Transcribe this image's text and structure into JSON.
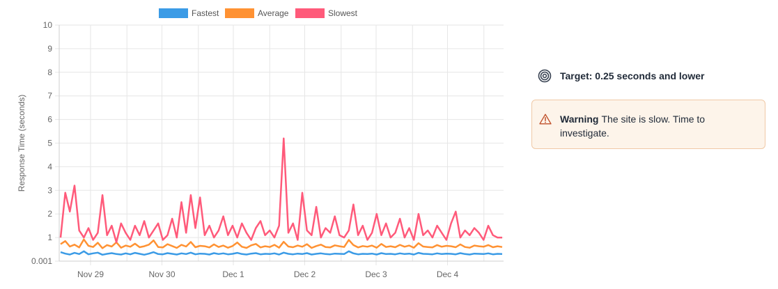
{
  "chart_data": {
    "type": "line",
    "xlabel": "",
    "ylabel": "Response Time (seconds)",
    "ylim": [
      0,
      10
    ],
    "y_ticks": [
      "0.001",
      "1",
      "2",
      "3",
      "4",
      "5",
      "6",
      "7",
      "8",
      "9",
      "10"
    ],
    "x_ticks": [
      "Nov 29",
      "Nov 30",
      "Dec 1",
      "Dec 2",
      "Dec 3",
      "Dec 4"
    ],
    "grid": true,
    "legend_position": "top",
    "series": [
      {
        "name": "Fastest",
        "color": "#3b9be6",
        "values": [
          0.38,
          0.32,
          0.28,
          0.35,
          0.3,
          0.42,
          0.29,
          0.33,
          0.36,
          0.27,
          0.31,
          0.34,
          0.3,
          0.28,
          0.33,
          0.29,
          0.35,
          0.31,
          0.27,
          0.32,
          0.38,
          0.3,
          0.29,
          0.34,
          0.31,
          0.28,
          0.33,
          0.3,
          0.36,
          0.29,
          0.32,
          0.31,
          0.28,
          0.34,
          0.3,
          0.33,
          0.29,
          0.31,
          0.35,
          0.3,
          0.28,
          0.32,
          0.34,
          0.29,
          0.31,
          0.3,
          0.33,
          0.28,
          0.36,
          0.31,
          0.29,
          0.32,
          0.3,
          0.34,
          0.28,
          0.31,
          0.33,
          0.3,
          0.29,
          0.32,
          0.31,
          0.3,
          0.42,
          0.33,
          0.29,
          0.31,
          0.3,
          0.32,
          0.28,
          0.34,
          0.3,
          0.31,
          0.29,
          0.33,
          0.3,
          0.32,
          0.28,
          0.35,
          0.31,
          0.3,
          0.29,
          0.33,
          0.3,
          0.32,
          0.31,
          0.29,
          0.34,
          0.3,
          0.28,
          0.32,
          0.31,
          0.3,
          0.33,
          0.29,
          0.31,
          0.3
        ]
      },
      {
        "name": "Average",
        "color": "#ff9233",
        "values": [
          0.72,
          0.85,
          0.62,
          0.7,
          0.58,
          0.92,
          0.65,
          0.6,
          0.78,
          0.55,
          0.68,
          0.62,
          0.8,
          0.57,
          0.66,
          0.61,
          0.74,
          0.59,
          0.63,
          0.7,
          0.88,
          0.6,
          0.58,
          0.72,
          0.64,
          0.56,
          0.69,
          0.62,
          0.81,
          0.59,
          0.65,
          0.63,
          0.58,
          0.71,
          0.6,
          0.66,
          0.57,
          0.64,
          0.79,
          0.61,
          0.56,
          0.67,
          0.73,
          0.58,
          0.63,
          0.6,
          0.69,
          0.57,
          0.82,
          0.62,
          0.59,
          0.66,
          0.61,
          0.72,
          0.56,
          0.64,
          0.7,
          0.6,
          0.58,
          0.67,
          0.63,
          0.6,
          0.9,
          0.68,
          0.58,
          0.64,
          0.61,
          0.66,
          0.57,
          0.73,
          0.6,
          0.63,
          0.59,
          0.69,
          0.61,
          0.66,
          0.57,
          0.76,
          0.62,
          0.6,
          0.58,
          0.68,
          0.61,
          0.65,
          0.63,
          0.59,
          0.71,
          0.6,
          0.57,
          0.66,
          0.63,
          0.61,
          0.68,
          0.59,
          0.63,
          0.6
        ]
      },
      {
        "name": "Slowest",
        "color": "#ff5a7a",
        "values": [
          1.0,
          2.9,
          2.1,
          3.2,
          1.3,
          1.0,
          1.4,
          0.9,
          1.2,
          2.8,
          1.1,
          1.5,
          0.8,
          1.6,
          1.2,
          0.9,
          1.5,
          1.1,
          1.7,
          1.0,
          1.3,
          1.6,
          0.9,
          1.1,
          1.8,
          1.0,
          2.5,
          1.2,
          2.8,
          1.4,
          2.7,
          1.1,
          1.5,
          1.0,
          1.3,
          1.9,
          1.1,
          1.5,
          1.0,
          1.6,
          1.2,
          0.9,
          1.4,
          1.7,
          1.1,
          1.3,
          1.0,
          1.5,
          5.2,
          1.2,
          1.6,
          0.9,
          2.9,
          1.3,
          1.1,
          2.3,
          1.0,
          1.4,
          1.2,
          1.9,
          1.1,
          1.0,
          1.3,
          2.4,
          1.1,
          1.5,
          0.9,
          1.2,
          2.0,
          1.1,
          1.6,
          1.0,
          1.2,
          1.8,
          1.0,
          1.4,
          0.9,
          2.0,
          1.1,
          1.3,
          1.0,
          1.5,
          1.2,
          0.9,
          1.6,
          2.1,
          1.0,
          1.3,
          1.1,
          1.4,
          1.2,
          0.9,
          1.5,
          1.1,
          1.0,
          1.0
        ]
      }
    ]
  },
  "panel": {
    "target_text": "Target: 0.25 seconds and lower",
    "warning_title": "Warning",
    "warning_text": "The site is slow. Time to investigate."
  },
  "colors": {
    "grid": "#e6e6e6",
    "axis": "#666666",
    "warning_border": "#f0c9a6",
    "warning_bg": "#fdf4ea",
    "warning_icon": "#c0502a"
  },
  "icons": {
    "target": "target-icon",
    "warning": "warning-triangle-icon"
  }
}
